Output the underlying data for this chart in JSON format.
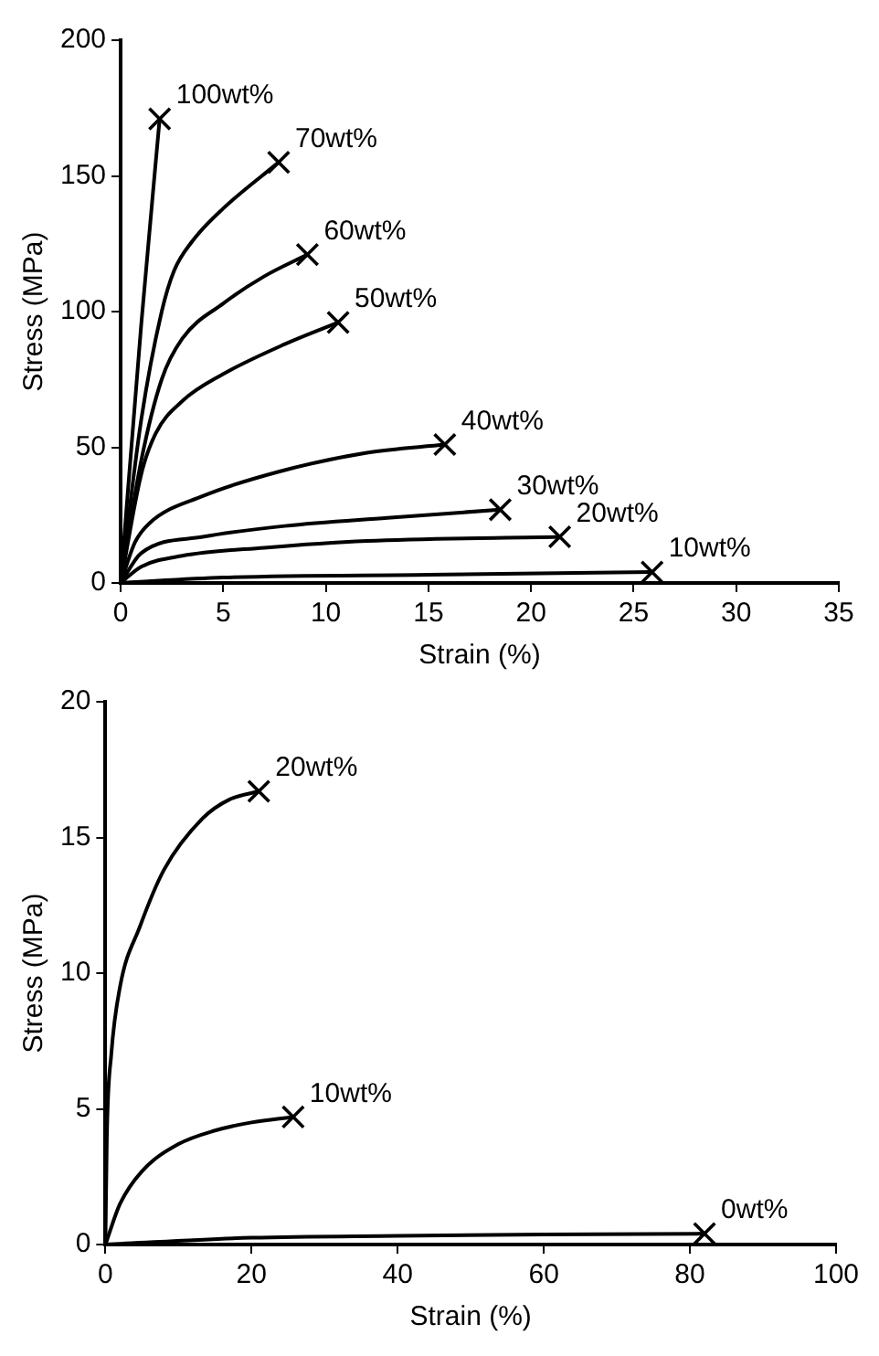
{
  "chart_data": [
    {
      "type": "line",
      "xlabel": "Strain (%)",
      "ylabel": "Stress (MPa)",
      "xlim": [
        0,
        35
      ],
      "xticks": [
        0,
        5,
        10,
        15,
        20,
        25,
        30,
        35
      ],
      "ylim": [
        0,
        200
      ],
      "yticks": [
        0,
        50,
        100,
        150,
        200
      ],
      "grid": false,
      "legend": false,
      "marker": "none",
      "series": [
        {
          "name": "100wt%",
          "color": "#000000",
          "x": [
            0,
            1,
            1.9
          ],
          "values": [
            0,
            95,
            171
          ]
        },
        {
          "name": "70wt%",
          "color": "#000000",
          "x": [
            0,
            1,
            2,
            2.6,
            3.5,
            5,
            7.7
          ],
          "values": [
            0,
            60,
            100,
            115,
            126,
            138,
            155
          ]
        },
        {
          "name": "60wt%",
          "color": "#000000",
          "x": [
            0,
            1,
            2,
            3,
            5,
            7,
            9.1
          ],
          "values": [
            0,
            45,
            75,
            90,
            103,
            113,
            121
          ]
        },
        {
          "name": "50wt%",
          "color": "#000000",
          "x": [
            0,
            1,
            1.7,
            3,
            5,
            8,
            10.6
          ],
          "values": [
            0,
            40,
            55,
            67,
            77,
            88,
            96
          ]
        },
        {
          "name": "40wt%",
          "color": "#000000",
          "x": [
            0,
            0.7,
            1.4,
            4,
            7.7,
            12,
            15.8
          ],
          "values": [
            0,
            15,
            22,
            32,
            41,
            48,
            51
          ]
        },
        {
          "name": "30wt%",
          "color": "#000000",
          "x": [
            0,
            1,
            4,
            8,
            13,
            18.5
          ],
          "values": [
            0,
            11,
            17,
            21,
            24,
            27
          ]
        },
        {
          "name": "20wt%",
          "color": "#000000",
          "x": [
            0,
            1,
            3,
            7,
            12,
            21.4
          ],
          "values": [
            0,
            6,
            10,
            13,
            15.5,
            17
          ]
        },
        {
          "name": "10wt%",
          "color": "#000000",
          "x": [
            0,
            5,
            15,
            25.9
          ],
          "values": [
            0,
            2,
            3,
            4
          ]
        },
        {
          "type": "scatter",
          "marker": "cross",
          "color": "#000000",
          "x": [
            1.9,
            7.7,
            9.1,
            10.6,
            15.8,
            18.5,
            21.4,
            25.9
          ],
          "values": [
            171,
            155,
            121,
            96,
            51,
            27,
            17,
            4
          ]
        }
      ]
    },
    {
      "type": "line",
      "xlabel": "Strain (%)",
      "ylabel": "Stress (MPa)",
      "xlim": [
        0,
        100
      ],
      "xticks": [
        0,
        20,
        40,
        60,
        80,
        100
      ],
      "ylim": [
        0,
        20
      ],
      "yticks": [
        0,
        5,
        10,
        15,
        20
      ],
      "grid": false,
      "legend": false,
      "marker": "none",
      "series": [
        {
          "name": "20wt%",
          "color": "#000000",
          "x": [
            0,
            0.2,
            0.8,
            2,
            4.7,
            8,
            13.3,
            17,
            21
          ],
          "values": [
            0,
            4,
            7,
            9.5,
            11.7,
            13.8,
            15.7,
            16.4,
            16.7
          ]
        },
        {
          "name": "10wt%",
          "color": "#000000",
          "x": [
            0,
            2,
            5,
            10,
            15,
            20,
            25.7
          ],
          "values": [
            0,
            1.5,
            2.7,
            3.7,
            4.2,
            4.5,
            4.7
          ]
        },
        {
          "name": "0wt%",
          "color": "#000000",
          "x": [
            0,
            20,
            40,
            60,
            82
          ],
          "values": [
            0,
            0.25,
            0.32,
            0.37,
            0.4
          ]
        },
        {
          "type": "scatter",
          "marker": "cross",
          "color": "#000000",
          "x": [
            21,
            25.7,
            82
          ],
          "values": [
            16.7,
            4.7,
            0.4
          ]
        }
      ]
    }
  ]
}
